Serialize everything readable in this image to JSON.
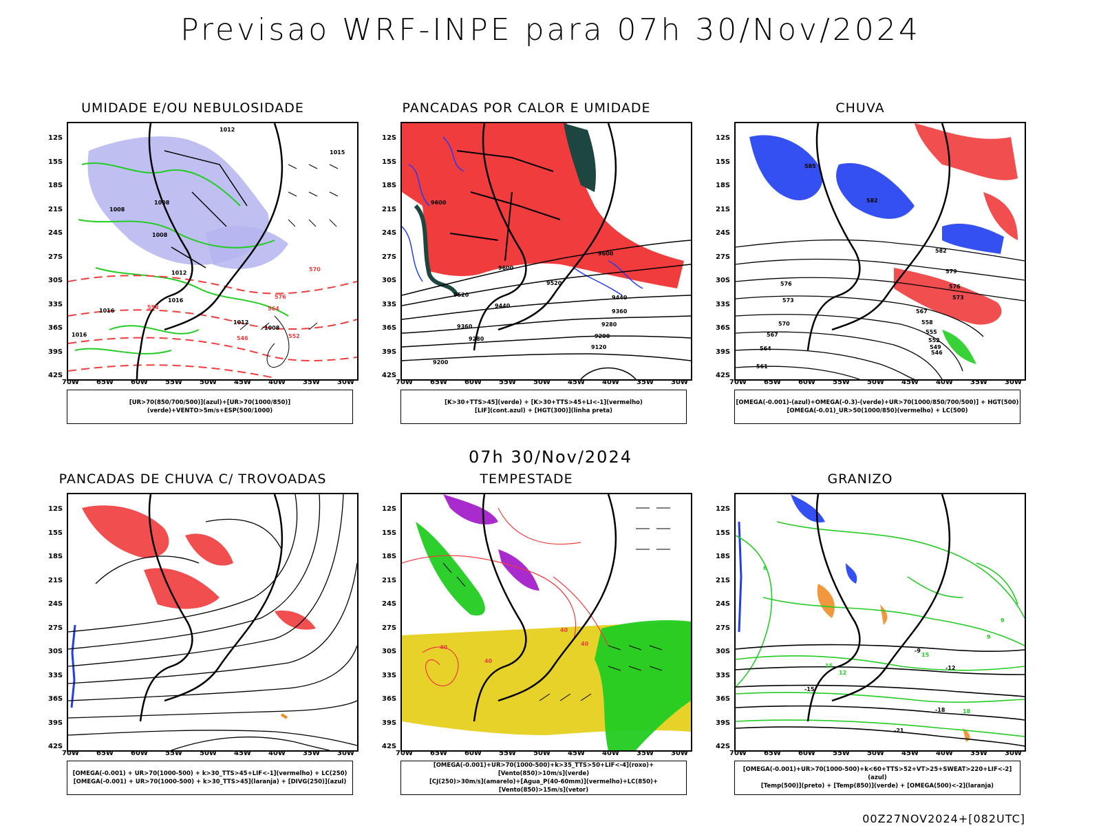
{
  "page": {
    "title": "Previsao WRF-INPE  para 07h 30/Nov/2024",
    "mid_title": "07h 30/Nov/2024",
    "footer": "00Z27NOV2024+[082UTC]"
  },
  "axes": {
    "lat_labels": [
      "12S",
      "15S",
      "18S",
      "21S",
      "24S",
      "27S",
      "30S",
      "33S",
      "36S",
      "39S",
      "42S"
    ],
    "lon_labels": [
      "70W",
      "65W",
      "60W",
      "55W",
      "50W",
      "45W",
      "40W",
      "35W",
      "30W"
    ]
  },
  "colors": {
    "blue": "#1f3df0",
    "green": "#22cc22",
    "red": "#f03c3c",
    "lavender": "#b4b4f0",
    "yellow": "#e6d228",
    "purple": "#a014c8",
    "orange": "#f08c28",
    "darkteal": "#1e4640"
  },
  "panels": [
    {
      "id": "umidade",
      "title": "UMIDADE E/OU NEBULOSIDADE",
      "legend": [
        "[UR>70(850/700/500)](azul)+[UR>70(1000/850)](verde)+VENTO>5m/s+ESP(500/1000)"
      ],
      "contour_labels": [
        "1012",
        "1015",
        "1008",
        "1008",
        "1008",
        "1012",
        "1016",
        "1016",
        "1016",
        "1012",
        "1008",
        "570",
        "576",
        "564",
        "558",
        "552",
        "546"
      ]
    },
    {
      "id": "pancadas-calor",
      "title": "PANCADAS POR CALOR E UMIDADE",
      "legend": [
        "[K>30+TTS>45](verde) + [K>30+TTS>45+LI<-1](vermelho)",
        "[LIF](cont.azul) + [HGT(300)](linha preta)"
      ],
      "contour_labels": [
        "9600",
        "9600",
        "9600",
        "9520",
        "9520",
        "9440",
        "9440",
        "9360",
        "9360",
        "9280",
        "9280",
        "9200",
        "9200",
        "9120"
      ]
    },
    {
      "id": "chuva",
      "title": "CHUVA",
      "legend": [
        "[OMEGA(-0.001)-(azul)+OMEGA(-0.3)-(verde)+UR>70(1000/850/700/500)] + HGT(500)",
        "[OMEGA(-0.01)_UR>50(1000/850)(vermelho) + LC(500)"
      ],
      "contour_labels": [
        "585",
        "582",
        "582",
        "579",
        "576",
        "576",
        "573",
        "573",
        "570",
        "567",
        "567",
        "564",
        "561",
        "558",
        "555",
        "552",
        "549",
        "546"
      ]
    },
    {
      "id": "trovoadas",
      "title": "PANCADAS DE CHUVA C/ TROVOADAS",
      "legend": [
        "[OMEGA(-0.001) + UR>70(1000-500) + k>30_TTS>45+LIF<-1](vermelho) + LC(250)",
        "[OMEGA(-0.001) + UR>70(1000-500) + k>30_TTS>45](laranja) + [DIVG(250)](azul)"
      ],
      "contour_labels": []
    },
    {
      "id": "tempestade",
      "title": "TEMPESTADE",
      "legend": [
        "[OMEGA(-0.001)+UR>70(1000-500)+k>35_TTS>50+LIF<-4](roxo)+[Vento(850)>10m/s](verde)",
        "[CJ(250)>30m/s](amarelo)+[Agua_P(40-60mm)](vermelho)+LC(850)+[Vento(850)>15m/s](vetor)"
      ],
      "contour_labels": [
        "40",
        "40",
        "40",
        "40"
      ]
    },
    {
      "id": "granizo",
      "title": "GRANIZO",
      "legend": [
        "[OMEGA(-0.001)+UR>70(1000-500)+k<60+TTS>52+VT>25+SWEAT>220+LIF<-2](azul)",
        "[Temp(500)](preto) + [Temp(850)](verde) + [OMEGA(500)<-2](laranja)"
      ],
      "contour_labels": [
        "-9",
        "-12",
        "-15",
        "-18",
        "-21",
        "15",
        "15",
        "12",
        "18",
        "9",
        "9",
        "6"
      ]
    }
  ]
}
